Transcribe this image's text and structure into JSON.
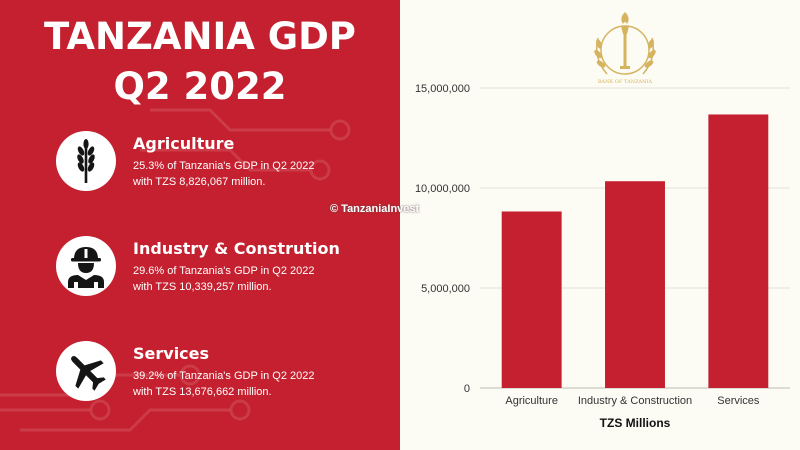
{
  "header": {
    "title_line1": "TANZANIA GDP",
    "title_line2": "Q2 2022"
  },
  "sectors": [
    {
      "name": "Agriculture",
      "line1": "25.3% of Tanzania's GDP in Q2 2022",
      "line2": "with TZS 8,826,067 million.",
      "icon": "wheat-icon"
    },
    {
      "name": "Industry & Constrution",
      "line1": "29.6% of Tanzania's GDP in Q2 2022",
      "line2": "with TZS 10,339,257 million.",
      "icon": "worker-icon"
    },
    {
      "name": "Services",
      "line1": "39.2% of Tanzania's GDP in Q2 2022",
      "line2": "with TZS 13,676,662 million.",
      "icon": "airplane-icon"
    }
  ],
  "watermark": "© TanzaniaInvest",
  "emblem": {
    "text": "BANK OF TANZANIA",
    "icon": "bank-of-tanzania-torch-emblem"
  },
  "colors": {
    "panel": "#c4202f",
    "bar": "#c4202f",
    "background": "#fcfcf5",
    "emblem": "#d6b35e"
  },
  "chart_data": {
    "type": "bar",
    "categories": [
      "Agriculture",
      "Industry & Construction",
      "Services"
    ],
    "values": [
      8826067,
      10339257,
      13676662
    ],
    "xlabel": "TZS Millions",
    "ylabel": "",
    "ylim": [
      0,
      15000000
    ],
    "yticks": [
      0,
      5000000,
      10000000,
      15000000
    ],
    "ytick_labels": [
      "0",
      "5,000,000",
      "10,000,000",
      "15,000,000"
    ],
    "grid": true,
    "legend": "none"
  }
}
